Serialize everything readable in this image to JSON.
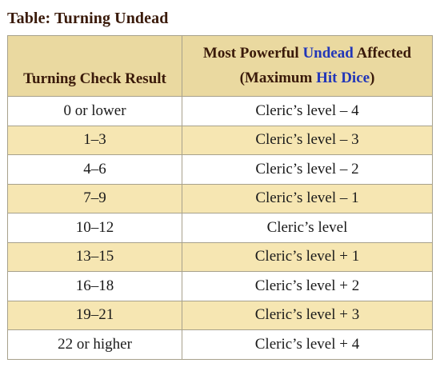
{
  "caption": "Table: Turning Undead",
  "header": {
    "col1": "Turning Check Result",
    "col2_part1": "Most Powerful ",
    "col2_link1": "Undead",
    "col2_part2": " Affected",
    "col2_part3": "(Maximum ",
    "col2_link2": "Hit Dice",
    "col2_part4": ")"
  },
  "rows": [
    {
      "result": "0 or lower",
      "affected": "Cleric’s level – 4"
    },
    {
      "result": "1–3",
      "affected": "Cleric’s level – 3"
    },
    {
      "result": "4–6",
      "affected": "Cleric’s level – 2"
    },
    {
      "result": "7–9",
      "affected": "Cleric’s level – 1"
    },
    {
      "result": "10–12",
      "affected": "Cleric’s level"
    },
    {
      "result": "13–15",
      "affected": "Cleric’s level + 1"
    },
    {
      "result": "16–18",
      "affected": "Cleric’s level + 2"
    },
    {
      "result": "19–21",
      "affected": "Cleric’s level + 3"
    },
    {
      "result": "22 or higher",
      "affected": "Cleric’s level + 4"
    }
  ],
  "colors": {
    "header_bg": "#ead9a0",
    "stripe_bg": "#f6e6b2",
    "link": "#2236b8",
    "border": "#a7a18c"
  }
}
